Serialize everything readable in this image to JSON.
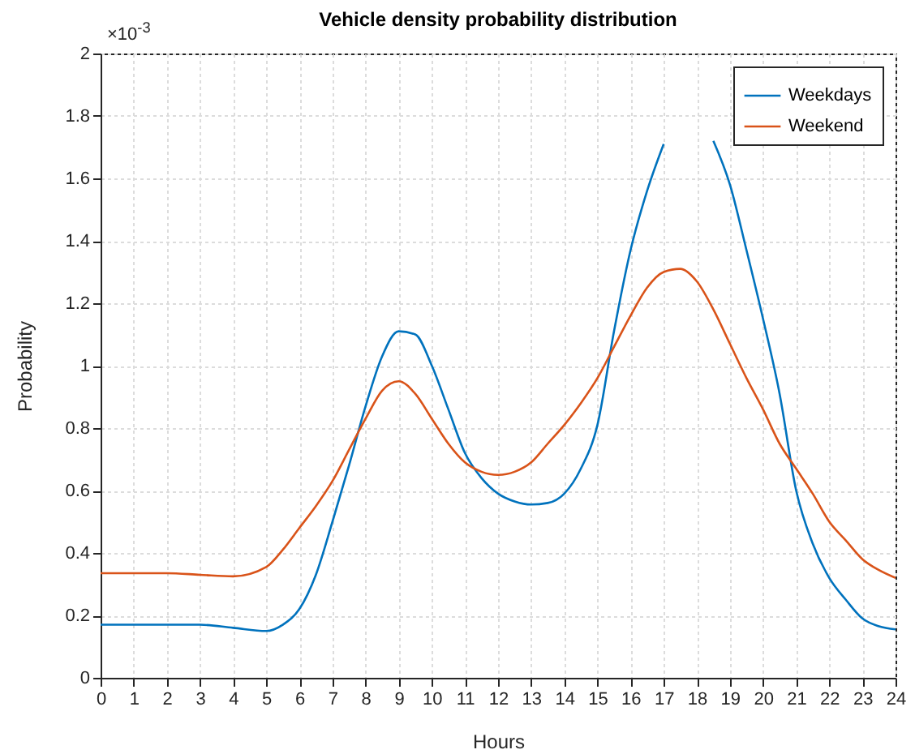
{
  "chart_data": {
    "type": "line",
    "title": "Vehicle density probability distribution",
    "xlabel": "Hours",
    "ylabel": "Probability",
    "annotations": [
      "×10$^{-3}$"
    ],
    "x": [
      0,
      1,
      2,
      3,
      4,
      5,
      5.5,
      6,
      6.5,
      7,
      7.5,
      8,
      8.5,
      9,
      9.5,
      10,
      10.5,
      11,
      11.5,
      12,
      12.5,
      13,
      13.5,
      14,
      14.5,
      15,
      15.5,
      16,
      16.5,
      17,
      17.5,
      18,
      18.5,
      19,
      19.5,
      20,
      20.5,
      21,
      21.5,
      22,
      22.5,
      23,
      23.5,
      24
    ],
    "series": [
      {
        "name": "Weekdays",
        "color": "#0072bd",
        "values": [
          0.17,
          0.17,
          0.17,
          0.17,
          0.16,
          0.15,
          0.17,
          0.22,
          0.33,
          0.5,
          0.68,
          0.87,
          1.03,
          1.11,
          1.1,
          1.0,
          0.86,
          0.72,
          0.64,
          0.59,
          0.565,
          0.555,
          0.56,
          0.59,
          0.67,
          0.81,
          1.11,
          1.37,
          1.56,
          1.71,
          null,
          null,
          1.72,
          1.58,
          1.37,
          1.15,
          0.91,
          0.6,
          0.43,
          0.32,
          0.25,
          0.19,
          0.165,
          0.155
        ]
      },
      {
        "name": "Weekend",
        "color": "#d95319",
        "values": [
          0.335,
          0.335,
          0.335,
          0.33,
          0.325,
          0.355,
          0.41,
          0.48,
          0.55,
          0.63,
          0.73,
          0.83,
          0.92,
          0.95,
          0.91,
          0.83,
          0.75,
          0.69,
          0.66,
          0.65,
          0.66,
          0.69,
          0.75,
          0.81,
          0.88,
          0.96,
          1.06,
          1.16,
          1.25,
          1.3,
          1.31,
          1.27,
          1.18,
          1.07,
          0.96,
          0.86,
          0.75,
          0.67,
          0.59,
          0.5,
          0.44,
          0.38,
          0.345,
          0.32
        ]
      }
    ],
    "xlim": [
      0,
      24
    ],
    "xticks": [
      0,
      1,
      2,
      3,
      4,
      5,
      6,
      7,
      8,
      9,
      10,
      11,
      12,
      13,
      14,
      15,
      16,
      17,
      18,
      19,
      20,
      21,
      22,
      23,
      24
    ],
    "ylim": [
      0,
      2
    ],
    "yticks": [
      0,
      0.2,
      0.4,
      0.6,
      0.8,
      1,
      1.2,
      1.4,
      1.6,
      1.8,
      2
    ],
    "grid": true,
    "legend": "top right",
    "marker": "none",
    "line_style": "solid"
  }
}
